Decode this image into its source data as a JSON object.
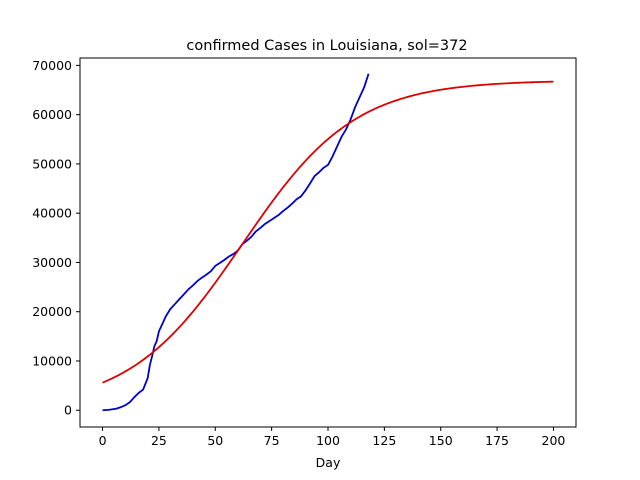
{
  "chart_data": {
    "type": "line",
    "title": "confirmed Cases in Louisiana, sol=372",
    "xlabel": "Day",
    "ylabel": "",
    "xlim": [
      -10,
      210
    ],
    "ylim": [
      -3400,
      71500
    ],
    "xticks": [
      0,
      25,
      50,
      75,
      100,
      125,
      150,
      175,
      200
    ],
    "yticks": [
      0,
      10000,
      20000,
      30000,
      40000,
      50000,
      60000,
      70000
    ],
    "grid": false,
    "series": [
      {
        "color": "#0000cd",
        "x": [
          0,
          3,
          6,
          8,
          10,
          12,
          14,
          16,
          18,
          20,
          21,
          22,
          23,
          24,
          25,
          26,
          27,
          28,
          30,
          32,
          34,
          36,
          38,
          40,
          42,
          44,
          46,
          48,
          50,
          52,
          54,
          56,
          58,
          60,
          62,
          64,
          66,
          68,
          70,
          72,
          74,
          76,
          78,
          80,
          82,
          84,
          86,
          88,
          90,
          92,
          94,
          96,
          98,
          100,
          102,
          104,
          106,
          108,
          110,
          112,
          114,
          116,
          118
        ],
        "y": [
          0,
          100,
          300,
          600,
          1000,
          1600,
          2600,
          3500,
          4200,
          6500,
          9200,
          11000,
          13000,
          14000,
          16000,
          17000,
          18000,
          19000,
          20500,
          21500,
          22500,
          23500,
          24500,
          25300,
          26200,
          26900,
          27500,
          28200,
          29300,
          29900,
          30500,
          31200,
          31700,
          32400,
          33700,
          34400,
          35200,
          36300,
          37000,
          37800,
          38400,
          39000,
          39600,
          40400,
          41100,
          41900,
          42800,
          43400,
          44600,
          46000,
          47500,
          48300,
          49200,
          49800,
          51500,
          53500,
          55500,
          57000,
          59000,
          61500,
          63500,
          65500,
          68300
        ]
      },
      {
        "color": "#dd0000",
        "model": "logistic",
        "x_start": 0,
        "x_end": 200,
        "y_start": 5600,
        "y_end": 66700
      }
    ]
  }
}
